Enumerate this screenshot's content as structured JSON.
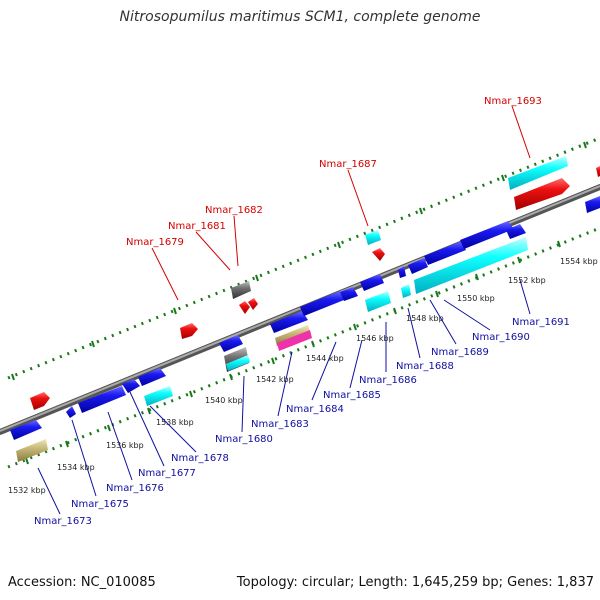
{
  "title": "Nitrosopumilus maritimus SCM1, complete genome",
  "footer": {
    "accession": "Accession: NC_010085",
    "topology": "Topology: circular; Length: 1,645,259 bp; Genes: 1,837"
  },
  "colors": {
    "forward_cds": "#1010e0",
    "reverse_cds": "#ee1111",
    "rna": "#00ffff",
    "other": "#c0b070",
    "backbone": "#888888",
    "tick": "#1a7a1a",
    "label_red": "#d40000",
    "label_blue": "#1010a0"
  },
  "scale_labels": [
    "1532 kbp",
    "1534 kbp",
    "1536 kbp",
    "1538 kbp",
    "1540 kbp",
    "1542 kbp",
    "1544 kbp",
    "1546 kbp",
    "1548 kbp",
    "1550 kbp",
    "1552 kbp",
    "1554 kbp"
  ],
  "top_gene_labels": [
    "Nmar_1679",
    "Nmar_1681",
    "Nmar_1682",
    "Nmar_1687",
    "Nmar_1693"
  ],
  "bottom_gene_labels": [
    "Nmar_1673",
    "Nmar_1675",
    "Nmar_1676",
    "Nmar_1677",
    "Nmar_1678",
    "Nmar_1680",
    "Nmar_1683",
    "Nmar_1684",
    "Nmar_1685",
    "Nmar_1686",
    "Nmar_1688",
    "Nmar_1689",
    "Nmar_1690",
    "Nmar_1691"
  ]
}
